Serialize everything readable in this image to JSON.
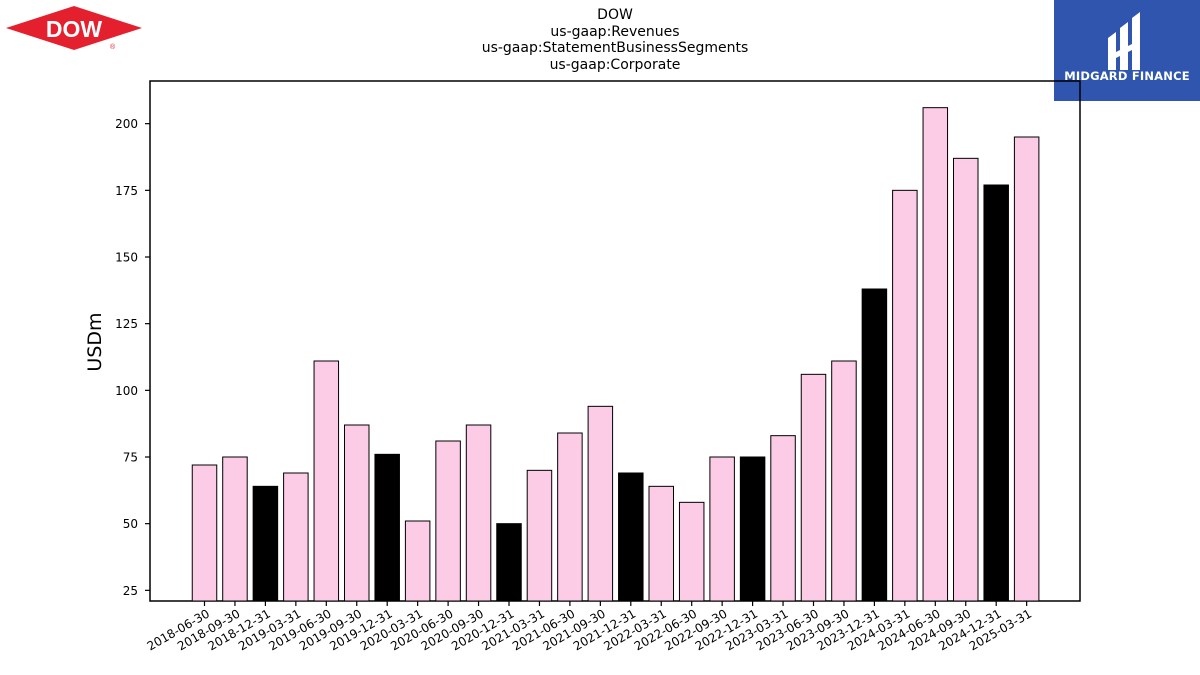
{
  "header": {
    "company_logo_text": "DOW",
    "title_lines": [
      "DOW",
      "us-gaap:Revenues",
      "us-gaap:StatementBusinessSegments",
      "us-gaap:Corporate"
    ],
    "watermark_text": "MIDGARD FINANCE"
  },
  "colors": {
    "bar_default": "#fccbe6",
    "bar_year_end": "#000000",
    "dow_red": "#e4202f",
    "watermark_bg": "#2f55ae"
  },
  "chart_data": {
    "type": "bar",
    "ylabel": "USDm",
    "xlabel": "",
    "ylim": [
      21,
      216
    ],
    "yticks": [
      25,
      50,
      75,
      100,
      125,
      150,
      175,
      200
    ],
    "categories": [
      "2018-06-30",
      "2018-09-30",
      "2018-12-31",
      "2019-03-31",
      "2019-06-30",
      "2019-09-30",
      "2019-12-31",
      "2020-03-31",
      "2020-06-30",
      "2020-09-30",
      "2020-12-31",
      "2021-03-31",
      "2021-06-30",
      "2021-09-30",
      "2021-12-31",
      "2022-03-31",
      "2022-06-30",
      "2022-09-30",
      "2022-12-31",
      "2023-03-31",
      "2023-06-30",
      "2023-09-30",
      "2023-12-31",
      "2024-03-31",
      "2024-06-30",
      "2024-09-30",
      "2024-12-31",
      "2025-03-31"
    ],
    "values": [
      72,
      75,
      64,
      69,
      111,
      87,
      76,
      51,
      81,
      87,
      50,
      70,
      84,
      94,
      69,
      64,
      58,
      75,
      75,
      83,
      106,
      111,
      138,
      175,
      206,
      187,
      177,
      195
    ],
    "grid": false,
    "legend": "none"
  }
}
